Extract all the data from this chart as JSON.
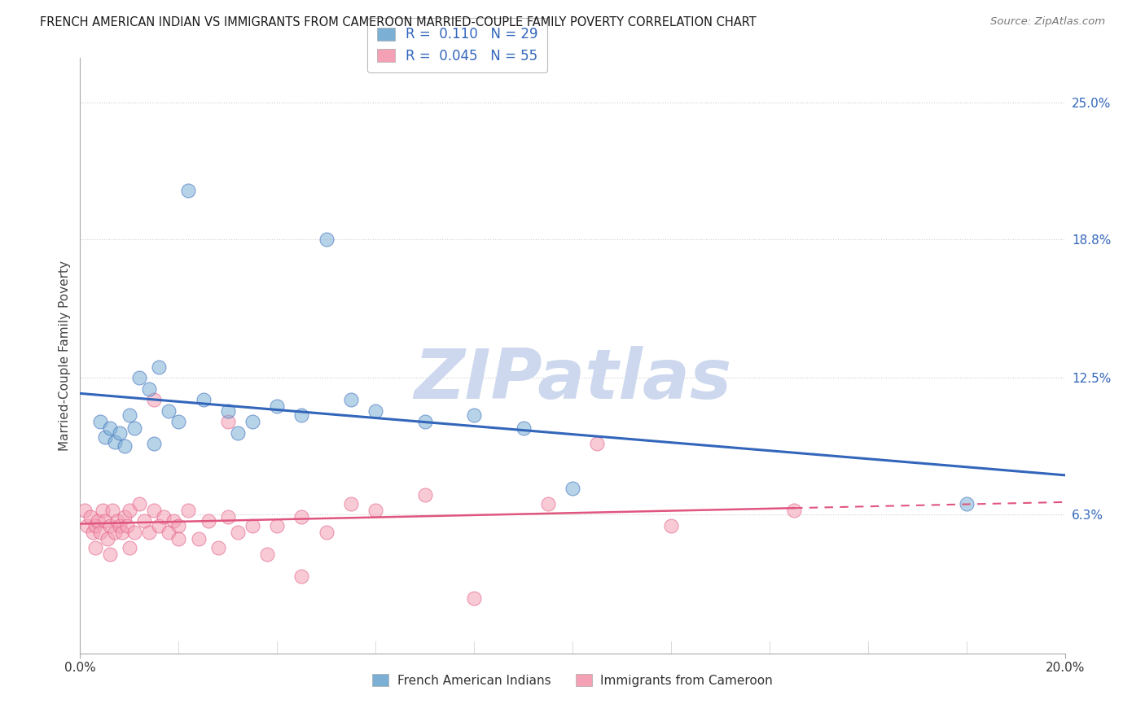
{
  "title": "FRENCH AMERICAN INDIAN VS IMMIGRANTS FROM CAMEROON MARRIED-COUPLE FAMILY POVERTY CORRELATION CHART",
  "source": "Source: ZipAtlas.com",
  "ylabel": "Married-Couple Family Poverty",
  "xlim": [
    0.0,
    20.0
  ],
  "ylim": [
    0.0,
    27.0
  ],
  "yticks_right": [
    6.3,
    12.5,
    18.8,
    25.0
  ],
  "ytick_labels_right": [
    "6.3%",
    "12.5%",
    "18.8%",
    "25.0%"
  ],
  "series1_name": "French American Indians",
  "series1_color": "#7bafd4",
  "series1_line_color": "#3366bb",
  "series2_name": "Immigrants from Cameroon",
  "series2_color": "#f4a0b5",
  "series2_line_color": "#e05580",
  "series1_R": 0.11,
  "series1_N": 29,
  "series2_R": 0.045,
  "series2_N": 55,
  "watermark": "ZIPatlas",
  "background_color": "#ffffff",
  "grid_color": "#cccccc",
  "series1_x": [
    1.5,
    2.2,
    0.4,
    0.5,
    0.6,
    0.7,
    0.8,
    0.9,
    1.0,
    1.1,
    1.2,
    1.4,
    1.6,
    1.8,
    2.0,
    2.5,
    3.0,
    3.5,
    4.0,
    4.5,
    5.0,
    5.5,
    6.0,
    7.0,
    8.0,
    9.0,
    10.0,
    18.0,
    3.2
  ],
  "series1_y": [
    9.5,
    21.0,
    10.5,
    9.8,
    10.2,
    9.6,
    10.0,
    9.4,
    10.8,
    10.2,
    12.5,
    12.0,
    13.0,
    11.0,
    10.5,
    11.5,
    11.0,
    10.5,
    11.2,
    10.8,
    18.8,
    11.5,
    11.0,
    10.5,
    10.8,
    10.2,
    7.5,
    6.8,
    10.0
  ],
  "series2_x": [
    0.1,
    0.15,
    0.2,
    0.25,
    0.3,
    0.35,
    0.4,
    0.45,
    0.5,
    0.55,
    0.6,
    0.65,
    0.7,
    0.75,
    0.8,
    0.85,
    0.9,
    0.95,
    1.0,
    1.1,
    1.2,
    1.3,
    1.4,
    1.5,
    1.6,
    1.7,
    1.8,
    1.9,
    2.0,
    2.2,
    2.4,
    2.6,
    2.8,
    3.0,
    3.2,
    3.5,
    3.8,
    4.0,
    4.5,
    5.0,
    5.5,
    6.0,
    7.0,
    8.0,
    9.5,
    10.5,
    12.0,
    14.5,
    0.3,
    0.6,
    1.0,
    1.5,
    2.0,
    3.0,
    4.5
  ],
  "series2_y": [
    6.5,
    5.8,
    6.2,
    5.5,
    5.8,
    6.0,
    5.5,
    6.5,
    6.0,
    5.2,
    5.8,
    6.5,
    5.5,
    6.0,
    5.8,
    5.5,
    6.2,
    5.8,
    6.5,
    5.5,
    6.8,
    6.0,
    5.5,
    6.5,
    5.8,
    6.2,
    5.5,
    6.0,
    5.8,
    6.5,
    5.2,
    6.0,
    4.8,
    6.2,
    5.5,
    5.8,
    4.5,
    5.8,
    6.2,
    5.5,
    6.8,
    6.5,
    7.2,
    2.5,
    6.8,
    9.5,
    5.8,
    6.5,
    4.8,
    4.5,
    4.8,
    11.5,
    5.2,
    10.5,
    3.5
  ]
}
